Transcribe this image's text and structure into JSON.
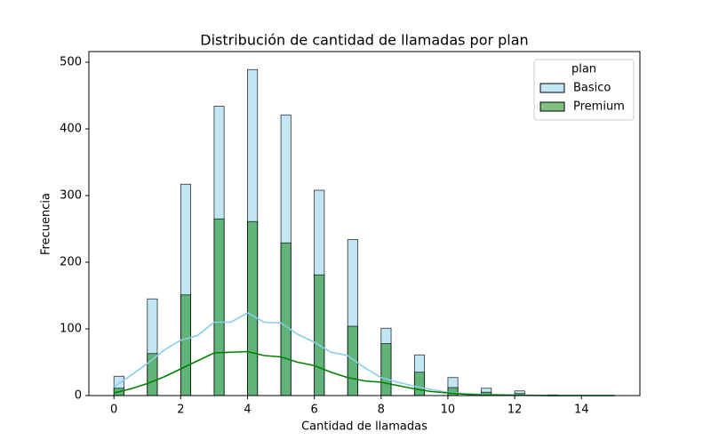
{
  "chart_data": {
    "type": "histogram",
    "title": "Distribución de cantidad de llamadas por plan",
    "xlabel": "Cantidad de llamadas",
    "ylabel": "Frecuencia",
    "legend_title": "plan",
    "legend": "upper right",
    "x": [
      0,
      1,
      2,
      3,
      4,
      5,
      6,
      7,
      8,
      9,
      10,
      11,
      12,
      13,
      14,
      15
    ],
    "kde_x": [
      0,
      0.5,
      1,
      1.5,
      2,
      2.5,
      3,
      3.5,
      4,
      4.5,
      5,
      5.5,
      6,
      6.5,
      7,
      7.5,
      8,
      8.5,
      9,
      9.5,
      10,
      10.5,
      11,
      11.5,
      12,
      13,
      14,
      15
    ],
    "series": [
      {
        "name": "Basico",
        "color": "#87ceeb",
        "values": [
          29,
          145,
          317,
          434,
          489,
          421,
          308,
          234,
          101,
          61,
          27,
          11,
          7,
          1,
          0,
          0
        ],
        "kde": [
          13,
          30,
          48,
          68,
          83,
          90,
          110,
          110,
          124,
          110,
          109,
          92,
          80,
          65,
          60,
          42,
          27,
          20,
          14,
          9,
          5,
          3,
          2,
          1,
          1,
          0,
          0,
          0
        ]
      },
      {
        "name": "Premium",
        "color": "#008000",
        "values": [
          11,
          63,
          151,
          265,
          261,
          229,
          181,
          104,
          78,
          35,
          12,
          5,
          3,
          0,
          0,
          0
        ],
        "kde": [
          4,
          10,
          18,
          28,
          40,
          52,
          64,
          65,
          66,
          60,
          58,
          50,
          45,
          35,
          27,
          22,
          20,
          15,
          10,
          6,
          4,
          2,
          1,
          1,
          0.5,
          0,
          0,
          0
        ]
      }
    ],
    "xlim": [
      -0.75,
      15.75
    ],
    "ylim": [
      0,
      516
    ],
    "xticks": [
      0,
      2,
      4,
      6,
      8,
      10,
      12,
      14
    ],
    "yticks": [
      0,
      100,
      200,
      300,
      400,
      500
    ]
  }
}
